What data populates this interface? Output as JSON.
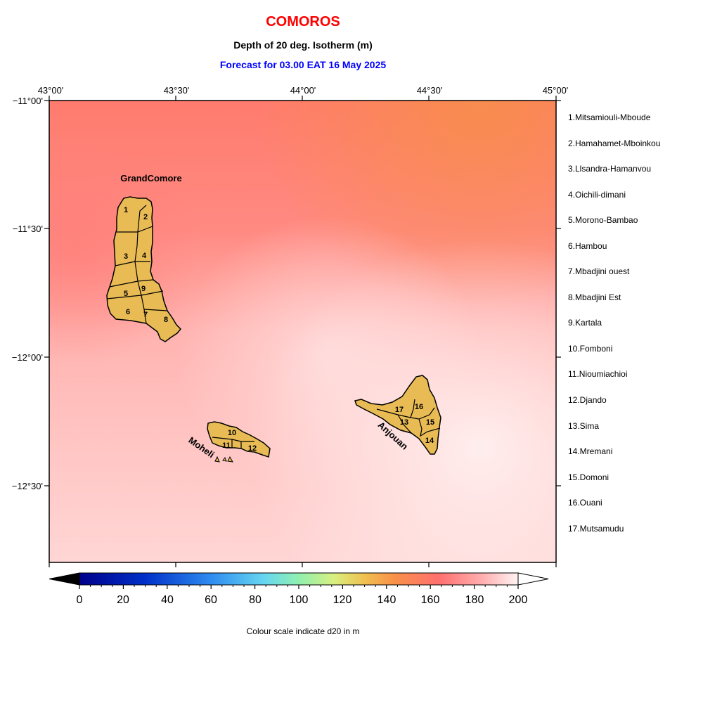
{
  "header": {
    "country": "COMOROS",
    "variable": "Depth of 20 deg. Isotherm (m)",
    "forecast": "Forecast for  03.00 EAT 16 May 2025"
  },
  "axes": {
    "lon_labels": [
      "43°00'",
      "43°30'",
      "44°00'",
      "44°30'",
      "45°00'"
    ],
    "lat_labels": [
      "−11°00'",
      "−11°30'",
      "−12°00'",
      "−12°30'"
    ]
  },
  "islands": {
    "grand_comore": "GrandComore",
    "moheli": "Moheli",
    "anjouan": "Anjouan"
  },
  "regions": [
    {
      "num": "1",
      "label": "1.Mitsamiouli-Mboude"
    },
    {
      "num": "2",
      "label": "2.Hamahamet-Mboinkou"
    },
    {
      "num": "3",
      "label": "3.Llsandra-Hamanvou"
    },
    {
      "num": "4",
      "label": "4.Oichili-dimani"
    },
    {
      "num": "5",
      "label": "5.Morono-Bambao"
    },
    {
      "num": "6",
      "label": "6.Hambou"
    },
    {
      "num": "7",
      "label": "7.Mbadjini ouest"
    },
    {
      "num": "8",
      "label": "8.Mbadjini Est"
    },
    {
      "num": "9",
      "label": "9.Kartala"
    },
    {
      "num": "10",
      "label": "10.Fomboni"
    },
    {
      "num": "11",
      "label": "11.Nioumiachioi"
    },
    {
      "num": "12",
      "label": "12.Djando"
    },
    {
      "num": "13",
      "label": "13.Sima"
    },
    {
      "num": "14",
      "label": "14.Mremani"
    },
    {
      "num": "15",
      "label": "15.Domoni"
    },
    {
      "num": "16",
      "label": "16.Ouani"
    },
    {
      "num": "17",
      "label": "17.Mutsamudu"
    }
  ],
  "colorbar": {
    "ticks": [
      "0",
      "20",
      "40",
      "60",
      "80",
      "100",
      "120",
      "140",
      "160",
      "180",
      "200"
    ],
    "caption": "Colour scale indicate d20 in m"
  },
  "colors": {
    "land": "#e8bb55",
    "title_red": "#ff0000",
    "forecast_blue": "#0000ff"
  }
}
